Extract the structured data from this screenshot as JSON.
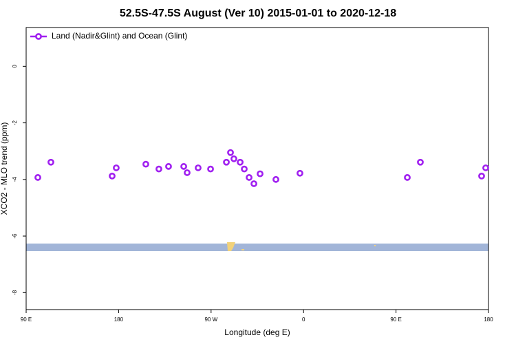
{
  "chart_data": {
    "type": "scatter",
    "title": "52.5S-47.5S August (Ver 10)   2015-01-01 to 2020-12-18",
    "x_label": "Longitude (deg E)",
    "y_label": "XCO2 - MLO trend (ppm)",
    "xlim": [
      90,
      540
    ],
    "ylim": [
      -8.6,
      1.37
    ],
    "xticks": [
      {
        "value": 90,
        "label": "90 E"
      },
      180,
      {
        "value": 270,
        "label": "90 W"
      },
      {
        "value": 360,
        "label": "0"
      },
      {
        "value": 450,
        "label": "90 E"
      },
      {
        "value": 540,
        "label": "180"
      }
    ],
    "yticks": [
      0,
      -2,
      -4,
      -6,
      -8
    ],
    "legend": "top-left",
    "series": [
      {
        "name": "Land (Nadir&Glint) and Ocean (Glint)",
        "color": "#a020f0",
        "x": [
          101.4,
          114.1,
          173.7,
          177.7,
          206.5,
          219.2,
          228.6,
          243.4,
          246.7,
          257.4,
          269.5,
          284.9,
          288.9,
          292.2,
          298.3,
          302.3,
          307.0,
          311.7,
          317.7,
          333.1,
          356.5,
          461.0,
          473.7,
          533.3,
          537.3
        ],
        "values": [
          -3.93,
          -3.39,
          -3.88,
          -3.59,
          -3.46,
          -3.63,
          -3.54,
          -3.54,
          -3.76,
          -3.59,
          -3.63,
          -3.39,
          -3.05,
          -3.27,
          -3.39,
          -3.63,
          -3.93,
          -4.15,
          -3.8,
          -4.0,
          -3.78,
          -3.93,
          -3.39,
          -3.88,
          -3.59
        ]
      }
    ]
  }
}
